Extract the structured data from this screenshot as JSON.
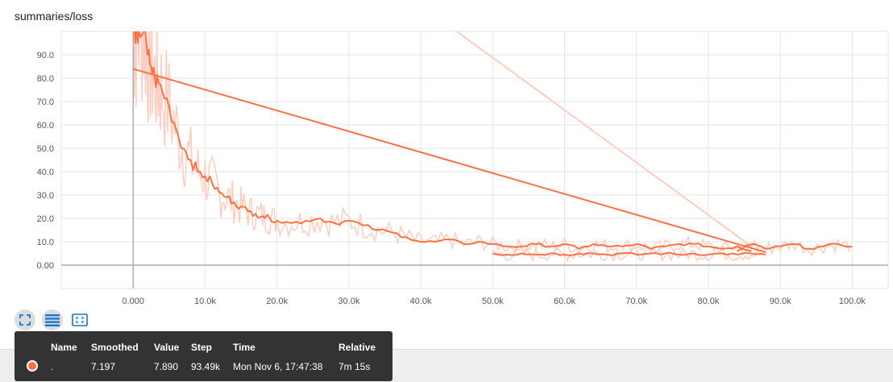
{
  "title": "summaries/loss",
  "colors": {
    "smoothed": "#ff7043",
    "raw": "#ffcdbf",
    "grid": "#e6e6e6",
    "axis": "#9e9e9e"
  },
  "toolbar": {
    "buttons": [
      {
        "name": "expand-chart-button",
        "icon": "fullscreen-icon"
      },
      {
        "name": "toggle-log-scale-button",
        "icon": "lines-icon"
      },
      {
        "name": "fit-domain-button",
        "icon": "fit-to-data-icon"
      }
    ]
  },
  "tooltip": {
    "headers": [
      "Name",
      "Smoothed",
      "Value",
      "Step",
      "Time",
      "Relative"
    ],
    "row": {
      "name": ".",
      "smoothed": "7.197",
      "value": "7.890",
      "step": "93.49k",
      "time": "Mon Nov 6, 17:47:38",
      "relative": "7m 15s"
    }
  },
  "chart_data": {
    "type": "line",
    "title": "summaries/loss",
    "xlabel": "",
    "ylabel": "",
    "xlim": [
      -10000,
      105000
    ],
    "ylim": [
      -10,
      100
    ],
    "x_ticks": [
      "0.000",
      "10.0k",
      "20.0k",
      "30.0k",
      "40.0k",
      "50.0k",
      "60.0k",
      "70.0k",
      "80.0k",
      "90.0k",
      "100.0k"
    ],
    "y_ticks": [
      "0.00",
      "10.0",
      "20.0",
      "30.0",
      "40.0",
      "50.0",
      "60.0",
      "70.0",
      "80.0",
      "90.0"
    ],
    "grid": true,
    "series": [
      {
        "style": "smoothed",
        "x": [
          0,
          300,
          800,
          1500,
          2000,
          2500,
          3000,
          3500,
          4000,
          5000,
          6000,
          7000,
          8000,
          9000,
          10000,
          11000,
          12000,
          13000,
          14000,
          15000,
          16000,
          17000,
          18000,
          19000,
          20000,
          22000,
          24000,
          26000,
          28000,
          30000,
          32000,
          34000,
          36000,
          38000,
          40000,
          42000,
          44000,
          46000,
          48000,
          50000,
          52000,
          54000,
          56000,
          58000,
          60000,
          62000,
          64000,
          66000,
          68000,
          70000,
          72000,
          74000,
          76000,
          78000,
          80000,
          82000,
          84000,
          86000
        ],
        "y": [
          100,
          95,
          100,
          100,
          90,
          85,
          80,
          78,
          75,
          68,
          58,
          50,
          45,
          40,
          38,
          35,
          31,
          29,
          27,
          25,
          23,
          22,
          21,
          20,
          19,
          18,
          19,
          20,
          18,
          19,
          17,
          15,
          14,
          12,
          10,
          10,
          11,
          9,
          10,
          9,
          8,
          8,
          9,
          8,
          9,
          7,
          9,
          8,
          8,
          9,
          7,
          8,
          9,
          9,
          8,
          7,
          8,
          6
        ]
      },
      {
        "style": "smoothed",
        "x": [
          0,
          88000
        ],
        "y": [
          84,
          5.5
        ]
      },
      {
        "style": "smoothed",
        "x": [
          50000,
          52000,
          54000,
          56000,
          58000,
          60000,
          62000,
          64000,
          66000,
          68000,
          70000,
          72000,
          74000,
          76000,
          78000,
          80000,
          82000,
          84000,
          86000,
          88000
        ],
        "y": [
          5,
          4.5,
          5,
          4.5,
          5,
          4.5,
          5,
          5,
          4.5,
          5,
          4.5,
          5,
          5,
          4.5,
          5,
          4.5,
          5,
          4.5,
          5,
          4.5
        ]
      },
      {
        "style": "smoothed",
        "x": [
          84000,
          86000,
          88000,
          90000,
          92000,
          94000,
          96000,
          98000,
          100000
        ],
        "y": [
          6,
          9,
          7,
          8,
          9,
          7,
          8,
          9,
          8
        ]
      },
      {
        "style": "raw",
        "x": [
          45000,
          86000
        ],
        "y": [
          100,
          8
        ]
      }
    ]
  }
}
